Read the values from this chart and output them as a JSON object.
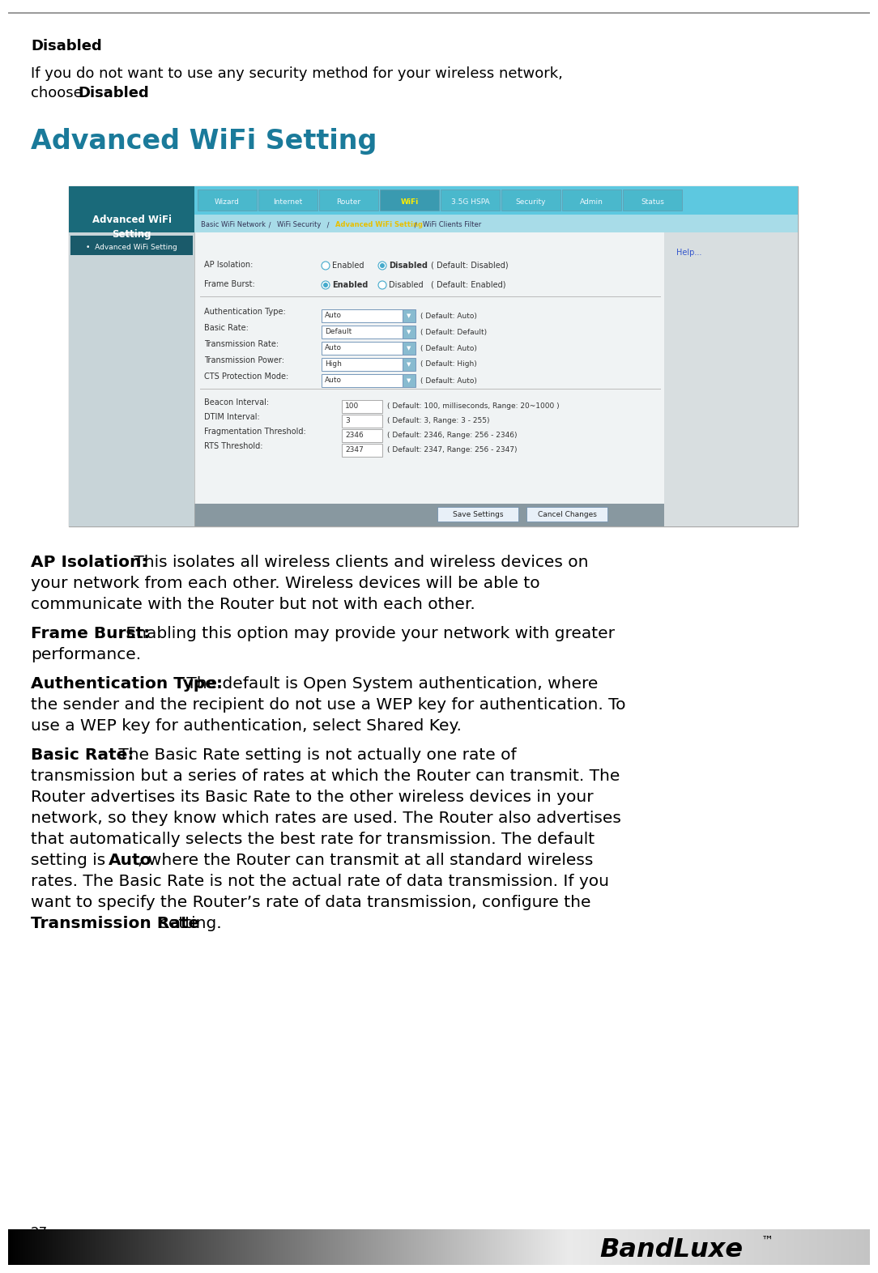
{
  "page_number": "27",
  "background_color": "#ffffff",
  "section1_title": "Disabled",
  "section2_title": "Advanced WiFi Setting",
  "footer_tm": "™"
}
